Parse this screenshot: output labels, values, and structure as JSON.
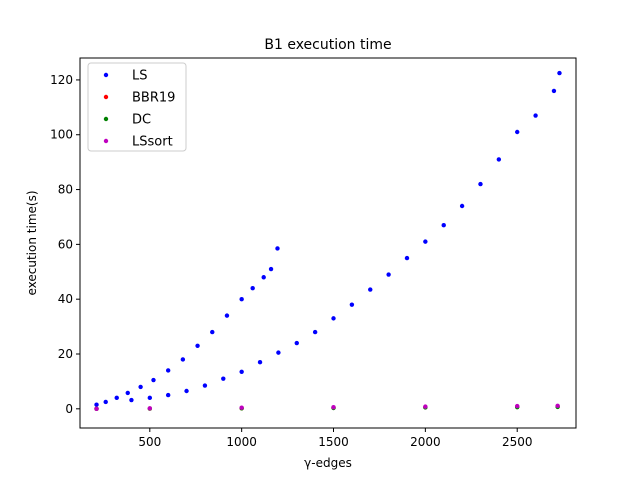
{
  "chart_data": {
    "type": "scatter",
    "title": "B1 execution time",
    "xlabel": "γ-edges",
    "ylabel": "execution time(s)",
    "xlim": [
      120,
      2820
    ],
    "ylim": [
      -7,
      128
    ],
    "xticks": [
      500,
      1000,
      1500,
      2000,
      2500
    ],
    "yticks": [
      0,
      20,
      40,
      60,
      80,
      100,
      120
    ],
    "grid": false,
    "legend": "top-left",
    "series": [
      {
        "name": "LS",
        "color": "#0000ff",
        "points": [
          [
            210,
            1.5
          ],
          [
            260,
            2.5
          ],
          [
            320,
            4.0
          ],
          [
            380,
            5.8
          ],
          [
            450,
            8.0
          ],
          [
            520,
            10.5
          ],
          [
            600,
            14.0
          ],
          [
            680,
            18.0
          ],
          [
            760,
            23.0
          ],
          [
            840,
            28.0
          ],
          [
            920,
            34.0
          ],
          [
            1000,
            40.0
          ],
          [
            1060,
            44.0
          ],
          [
            1120,
            48.0
          ],
          [
            1160,
            51.0
          ],
          [
            1195,
            58.5
          ],
          [
            400,
            3.2
          ],
          [
            500,
            4.0
          ],
          [
            600,
            5.0
          ],
          [
            700,
            6.5
          ],
          [
            800,
            8.5
          ],
          [
            900,
            11.0
          ],
          [
            1000,
            13.5
          ],
          [
            1100,
            17.0
          ],
          [
            1200,
            20.5
          ],
          [
            1300,
            24.0
          ],
          [
            1400,
            28.0
          ],
          [
            1500,
            33.0
          ],
          [
            1600,
            38.0
          ],
          [
            1700,
            43.5
          ],
          [
            1800,
            49.0
          ],
          [
            1900,
            55.0
          ],
          [
            2000,
            61.0
          ],
          [
            2100,
            67.0
          ],
          [
            2200,
            74.0
          ],
          [
            2300,
            82.0
          ],
          [
            2400,
            91.0
          ],
          [
            2500,
            101.0
          ],
          [
            2600,
            107.0
          ],
          [
            2700,
            116.0
          ],
          [
            2730,
            122.5
          ]
        ]
      },
      {
        "name": "BBR19",
        "color": "#ff0000",
        "points": [
          [
            210,
            0.0
          ],
          [
            500,
            0.1
          ],
          [
            1000,
            0.2
          ],
          [
            1500,
            0.4
          ],
          [
            2000,
            0.6
          ],
          [
            2500,
            0.8
          ],
          [
            2720,
            0.9
          ]
        ]
      },
      {
        "name": "DC",
        "color": "#008000",
        "points": [
          [
            210,
            0.0
          ],
          [
            500,
            0.1
          ],
          [
            1000,
            0.2
          ],
          [
            1500,
            0.3
          ],
          [
            2000,
            0.5
          ],
          [
            2500,
            0.6
          ],
          [
            2720,
            0.7
          ]
        ]
      },
      {
        "name": "LSsort",
        "color": "#bf00bf",
        "points": [
          [
            210,
            0.0
          ],
          [
            500,
            0.2
          ],
          [
            1000,
            0.4
          ],
          [
            1500,
            0.6
          ],
          [
            2000,
            0.8
          ],
          [
            2500,
            1.0
          ],
          [
            2720,
            1.1
          ]
        ]
      }
    ]
  }
}
